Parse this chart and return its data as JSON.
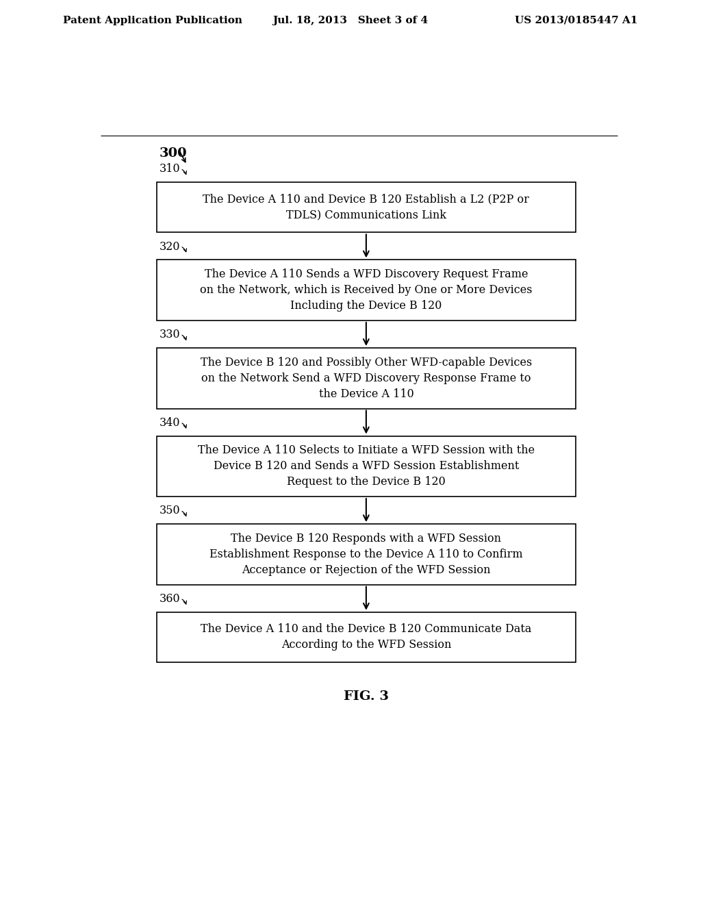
{
  "bg_color": "#ffffff",
  "header_left": "Patent Application Publication",
  "header_mid": "Jul. 18, 2013   Sheet 3 of 4",
  "header_right": "US 2013/0185447 A1",
  "fig_label": "FIG. 3",
  "diagram_label": "300",
  "boxes": [
    {
      "id": "310",
      "label": "310",
      "text": "The Device A 110 and Device B 120 Establish a L2 (P2P or\nTDLS) Communications Link",
      "lines": 2
    },
    {
      "id": "320",
      "label": "320",
      "text": "The Device A 110 Sends a WFD Discovery Request Frame\non the Network, which is Received by One or More Devices\nIncluding the Device B 120",
      "lines": 3
    },
    {
      "id": "330",
      "label": "330",
      "text": "The Device B 120 and Possibly Other WFD-capable Devices\non the Network Send a WFD Discovery Response Frame to\nthe Device A 110",
      "lines": 3
    },
    {
      "id": "340",
      "label": "340",
      "text": "The Device A 110 Selects to Initiate a WFD Session with the\nDevice B 120 and Sends a WFD Session Establishment\nRequest to the Device B 120",
      "lines": 3
    },
    {
      "id": "350",
      "label": "350",
      "text": "The Device B 120 Responds with a WFD Session\nEstablishment Response to the Device A 110 to Confirm\nAcceptance or Rejection of the WFD Session",
      "lines": 3
    },
    {
      "id": "360",
      "label": "360",
      "text": "The Device A 110 and the Device B 120 Communicate Data\nAccording to the WFD Session",
      "lines": 2
    }
  ],
  "box_color": "#ffffff",
  "box_edge_color": "#000000",
  "text_color": "#000000",
  "arrow_color": "#000000",
  "label_fontsize": 11.5,
  "text_fontsize": 11.5,
  "header_fontsize": 11
}
